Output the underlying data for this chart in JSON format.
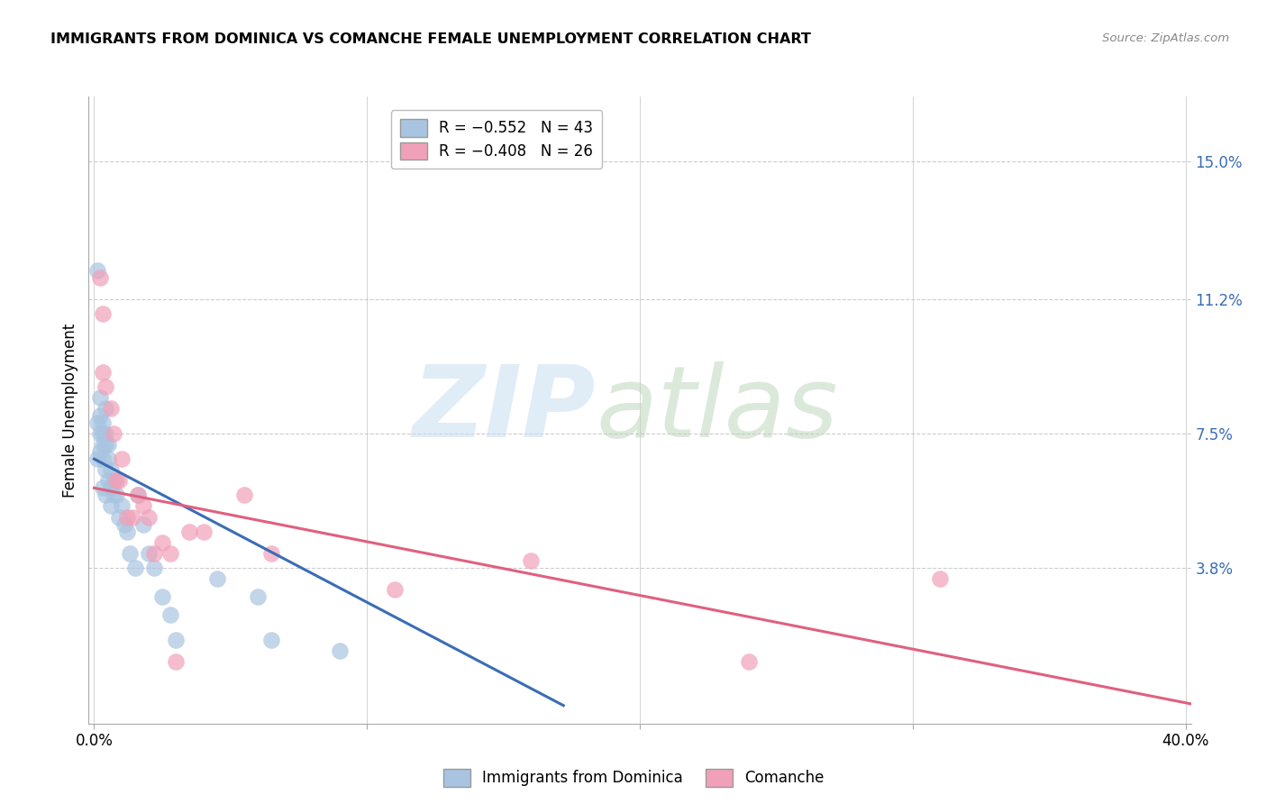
{
  "title": "IMMIGRANTS FROM DOMINICA VS COMANCHE FEMALE UNEMPLOYMENT CORRELATION CHART",
  "source": "Source: ZipAtlas.com",
  "ylabel": "Female Unemployment",
  "ytick_labels": [
    "15.0%",
    "11.2%",
    "7.5%",
    "3.8%"
  ],
  "ytick_values": [
    0.15,
    0.112,
    0.075,
    0.038
  ],
  "xtick_values": [
    0.0,
    0.1,
    0.2,
    0.3,
    0.4
  ],
  "xlim": [
    -0.002,
    0.402
  ],
  "ylim": [
    -0.005,
    0.168
  ],
  "blue_color": "#a8c4e0",
  "blue_line_color": "#3a6db5",
  "pink_color": "#f0a0b8",
  "pink_line_color": "#e06080",
  "legend_label1": "Immigrants from Dominica",
  "legend_label2": "Comanche",
  "blue_scatter_x": [
    0.001,
    0.001,
    0.001,
    0.002,
    0.002,
    0.002,
    0.002,
    0.003,
    0.003,
    0.003,
    0.003,
    0.003,
    0.004,
    0.004,
    0.004,
    0.004,
    0.004,
    0.005,
    0.005,
    0.005,
    0.006,
    0.006,
    0.006,
    0.007,
    0.007,
    0.008,
    0.009,
    0.01,
    0.011,
    0.012,
    0.013,
    0.015,
    0.016,
    0.018,
    0.02,
    0.022,
    0.025,
    0.028,
    0.03,
    0.045,
    0.06,
    0.065,
    0.09
  ],
  "blue_scatter_y": [
    0.12,
    0.078,
    0.068,
    0.085,
    0.08,
    0.075,
    0.07,
    0.078,
    0.075,
    0.072,
    0.068,
    0.06,
    0.082,
    0.075,
    0.072,
    0.065,
    0.058,
    0.072,
    0.068,
    0.062,
    0.065,
    0.06,
    0.055,
    0.062,
    0.058,
    0.058,
    0.052,
    0.055,
    0.05,
    0.048,
    0.042,
    0.038,
    0.058,
    0.05,
    0.042,
    0.038,
    0.03,
    0.025,
    0.018,
    0.035,
    0.03,
    0.018,
    0.015
  ],
  "pink_scatter_x": [
    0.002,
    0.003,
    0.003,
    0.004,
    0.006,
    0.007,
    0.008,
    0.009,
    0.01,
    0.012,
    0.014,
    0.016,
    0.018,
    0.02,
    0.022,
    0.025,
    0.028,
    0.03,
    0.035,
    0.04,
    0.055,
    0.065,
    0.11,
    0.16,
    0.24,
    0.31
  ],
  "pink_scatter_y": [
    0.118,
    0.108,
    0.092,
    0.088,
    0.082,
    0.075,
    0.062,
    0.062,
    0.068,
    0.052,
    0.052,
    0.058,
    0.055,
    0.052,
    0.042,
    0.045,
    0.042,
    0.012,
    0.048,
    0.048,
    0.058,
    0.042,
    0.032,
    0.04,
    0.012,
    0.035
  ],
  "blue_trend_x": [
    0.0,
    0.172
  ],
  "blue_trend_y": [
    0.068,
    0.0
  ],
  "pink_trend_x": [
    0.0,
    0.405
  ],
  "pink_trend_y": [
    0.06,
    0.0
  ]
}
